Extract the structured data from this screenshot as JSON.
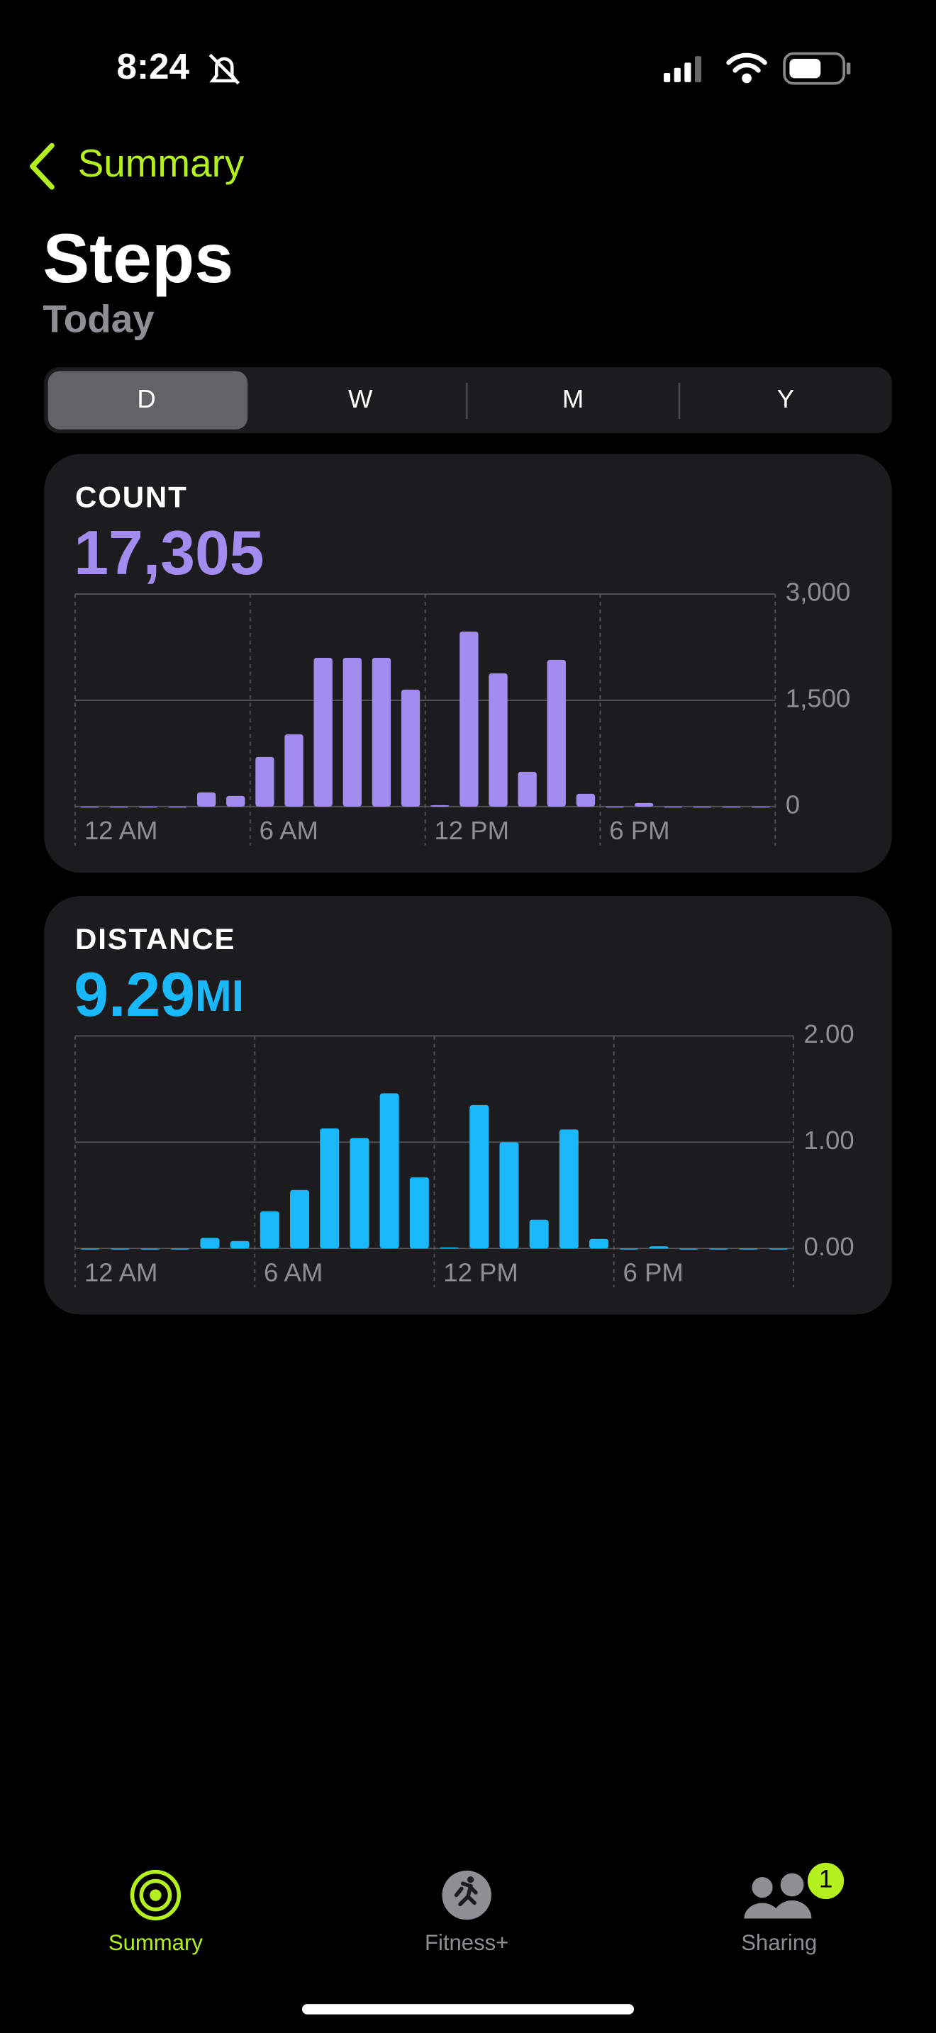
{
  "status_bar": {
    "time": "8:24"
  },
  "nav": {
    "back": "Summary"
  },
  "header": {
    "title": "Steps",
    "subtitle": "Today"
  },
  "segments": {
    "items": [
      "D",
      "W",
      "M",
      "Y"
    ],
    "selected": 0
  },
  "cards": [
    {
      "label": "COUNT",
      "value": "17,305",
      "chart": {
        "type": "bar",
        "color": "#a38cf0",
        "grid": true,
        "categories": [
          "12 AM",
          null,
          null,
          null,
          null,
          null,
          "6 AM",
          null,
          null,
          null,
          null,
          null,
          "12 PM",
          null,
          null,
          null,
          null,
          null,
          "6 PM",
          null,
          null,
          null,
          null,
          null
        ],
        "values": [
          0,
          0,
          0,
          0,
          200,
          150,
          700,
          1020,
          2100,
          2100,
          2100,
          1650,
          20,
          2470,
          1880,
          490,
          2070,
          180,
          0,
          50,
          0,
          0,
          0,
          0
        ],
        "ylim": [
          0,
          3000
        ],
        "yticks": [
          0,
          {
            "value": 1500,
            "label": "1,500"
          },
          {
            "value": 3000,
            "label": "3,000"
          }
        ]
      }
    },
    {
      "label": "DISTANCE",
      "value": "9.29",
      "unit": "MI",
      "chart": {
        "type": "bar",
        "color": "#19b8fa",
        "grid": true,
        "categories": [
          "12 AM",
          null,
          null,
          null,
          null,
          null,
          "6 AM",
          null,
          null,
          null,
          null,
          null,
          "12 PM",
          null,
          null,
          null,
          null,
          null,
          "6 PM",
          null,
          null,
          null,
          null,
          null
        ],
        "values": [
          0,
          0,
          0,
          0,
          0.1,
          0.07,
          0.35,
          0.55,
          1.13,
          1.04,
          1.46,
          0.67,
          0.01,
          1.35,
          1.0,
          0.27,
          1.12,
          0.09,
          0,
          0.02,
          0,
          0,
          0,
          0
        ],
        "ylim": [
          0,
          2
        ],
        "yticks": [
          {
            "value": 0,
            "label": "0.00"
          },
          {
            "value": 1,
            "label": "1.00"
          },
          {
            "value": 2,
            "label": "2.00"
          }
        ]
      }
    }
  ],
  "tabs": [
    {
      "label": "Summary"
    },
    {
      "label": "Fitness+"
    },
    {
      "label": "Sharing",
      "badge": "1"
    }
  ]
}
